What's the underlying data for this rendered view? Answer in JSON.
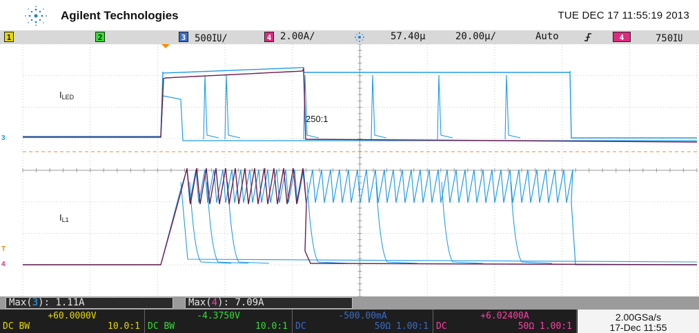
{
  "header": {
    "brand": "Agilent Technologies",
    "datetime": "TUE DEC 17 11:55:19 2013",
    "logo_icon": "agilent-spark-icon"
  },
  "status": {
    "ch1_label": "1",
    "ch2_label": "2",
    "ch3_label": "3",
    "ch3_scale": "500㍺/",
    "ch4_label": "4",
    "ch4_scale": "2.00A/",
    "trigger_pos_icon": "trigger-position-icon",
    "delay": "57.40µ",
    "timebase": "20.00µ/",
    "mode": "Auto",
    "slope_icon": "rising-edge-icon",
    "trig_source": "4",
    "trig_level": "750㍺"
  },
  "annotations": {
    "iled_main": "I",
    "iled_sub": "LED",
    "il1_main": "I",
    "il1_sub": "L1",
    "ratio": "250:1"
  },
  "markers": {
    "ch3_marker": "3",
    "ch4_marker": "4",
    "trigger_marker": "T"
  },
  "measurements": [
    {
      "prefix": "Max(",
      "ch": "3",
      "suffix": "): 1.11A"
    },
    {
      "prefix": "Max(",
      "ch": "4",
      "suffix": "): 7.09A"
    }
  ],
  "channels": [
    {
      "value": "+60.0000V",
      "coupling": "DC BW",
      "probe": "10.0:1"
    },
    {
      "value": "-4.3750V",
      "coupling": "DC BW",
      "probe": "10.0:1"
    },
    {
      "value": "-500.00mA",
      "coupling": "DC",
      "probe": "50Ω  1.00:1"
    },
    {
      "value": "+6.02400A",
      "coupling": "DC",
      "probe": "50Ω  1.00:1"
    }
  ],
  "timeinfo": {
    "sample_rate": "2.00GSa/s",
    "date": "17-Dec 11:55"
  },
  "colors": {
    "ch3": "#1f9be8",
    "ch4": "#6b1a4a",
    "grid": "#c8c8c8",
    "trigger_level_line": "#f0a050"
  }
}
